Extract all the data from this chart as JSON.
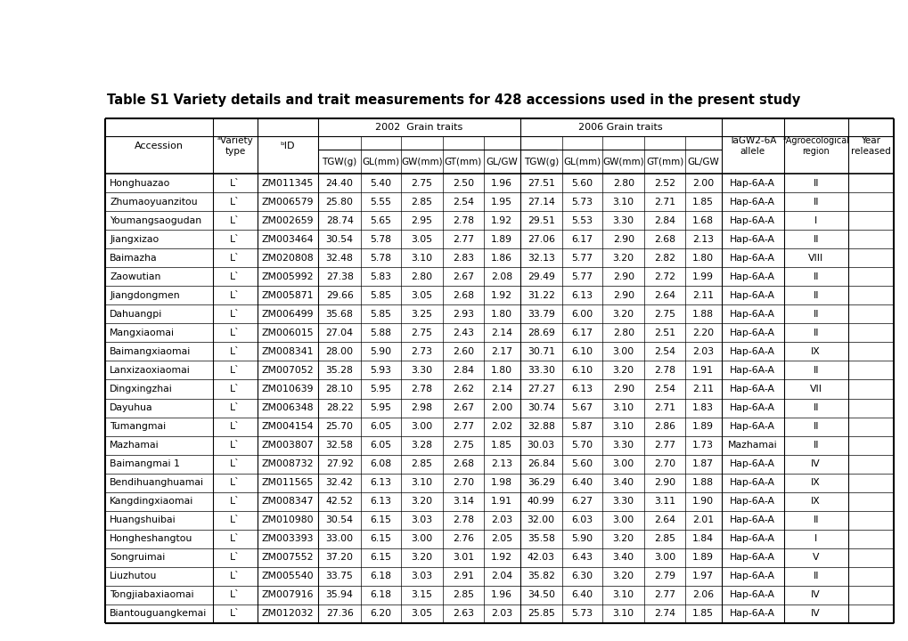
{
  "title": "Table S1 Variety details and trait measurements for 428 accessions used in the present study",
  "rows": [
    [
      "Honghuazao",
      "L`",
      "ZM011345",
      "24.40",
      "5.40",
      "2.75",
      "2.50",
      "1.96",
      "27.51",
      "5.60",
      "2.80",
      "2.52",
      "2.00",
      "Hap-6A-A",
      "II",
      ""
    ],
    [
      "Zhumaoyuanzitou",
      "L`",
      "ZM006579",
      "25.80",
      "5.55",
      "2.85",
      "2.54",
      "1.95",
      "27.14",
      "5.73",
      "3.10",
      "2.71",
      "1.85",
      "Hap-6A-A",
      "II",
      ""
    ],
    [
      "Youmangsaogudan",
      "L`",
      "ZM002659",
      "28.74",
      "5.65",
      "2.95",
      "2.78",
      "1.92",
      "29.51",
      "5.53",
      "3.30",
      "2.84",
      "1.68",
      "Hap-6A-A",
      "I",
      ""
    ],
    [
      "Jiangxizao",
      "L`",
      "ZM003464",
      "30.54",
      "5.78",
      "3.05",
      "2.77",
      "1.89",
      "27.06",
      "6.17",
      "2.90",
      "2.68",
      "2.13",
      "Hap-6A-A",
      "II",
      ""
    ],
    [
      "Baimazha",
      "L`",
      "ZM020808",
      "32.48",
      "5.78",
      "3.10",
      "2.83",
      "1.86",
      "32.13",
      "5.77",
      "3.20",
      "2.82",
      "1.80",
      "Hap-6A-A",
      "VIII",
      ""
    ],
    [
      "Zaowutian",
      "L`",
      "ZM005992",
      "27.38",
      "5.83",
      "2.80",
      "2.67",
      "2.08",
      "29.49",
      "5.77",
      "2.90",
      "2.72",
      "1.99",
      "Hap-6A-A",
      "II",
      ""
    ],
    [
      "Jiangdongmen",
      "L`",
      "ZM005871",
      "29.66",
      "5.85",
      "3.05",
      "2.68",
      "1.92",
      "31.22",
      "6.13",
      "2.90",
      "2.64",
      "2.11",
      "Hap-6A-A",
      "II",
      ""
    ],
    [
      "Dahuangpi",
      "L`",
      "ZM006499",
      "35.68",
      "5.85",
      "3.25",
      "2.93",
      "1.80",
      "33.79",
      "6.00",
      "3.20",
      "2.75",
      "1.88",
      "Hap-6A-A",
      "II",
      ""
    ],
    [
      "Mangxiaomai",
      "L`",
      "ZM006015",
      "27.04",
      "5.88",
      "2.75",
      "2.43",
      "2.14",
      "28.69",
      "6.17",
      "2.80",
      "2.51",
      "2.20",
      "Hap-6A-A",
      "II",
      ""
    ],
    [
      "Baimangxiaomai",
      "L`",
      "ZM008341",
      "28.00",
      "5.90",
      "2.73",
      "2.60",
      "2.17",
      "30.71",
      "6.10",
      "3.00",
      "2.54",
      "2.03",
      "Hap-6A-A",
      "IX",
      ""
    ],
    [
      "Lanxizaoxiaomai",
      "L`",
      "ZM007052",
      "35.28",
      "5.93",
      "3.30",
      "2.84",
      "1.80",
      "33.30",
      "6.10",
      "3.20",
      "2.78",
      "1.91",
      "Hap-6A-A",
      "II",
      ""
    ],
    [
      "Dingxingzhai",
      "L`",
      "ZM010639",
      "28.10",
      "5.95",
      "2.78",
      "2.62",
      "2.14",
      "27.27",
      "6.13",
      "2.90",
      "2.54",
      "2.11",
      "Hap-6A-A",
      "VII",
      ""
    ],
    [
      "Dayuhua",
      "L`",
      "ZM006348",
      "28.22",
      "5.95",
      "2.98",
      "2.67",
      "2.00",
      "30.74",
      "5.67",
      "3.10",
      "2.71",
      "1.83",
      "Hap-6A-A",
      "II",
      ""
    ],
    [
      "Tumangmai",
      "L`",
      "ZM004154",
      "25.70",
      "6.05",
      "3.00",
      "2.77",
      "2.02",
      "32.88",
      "5.87",
      "3.10",
      "2.86",
      "1.89",
      "Hap-6A-A",
      "II",
      ""
    ],
    [
      "Mazhamai",
      "L`",
      "ZM003807",
      "32.58",
      "6.05",
      "3.28",
      "2.75",
      "1.85",
      "30.03",
      "5.70",
      "3.30",
      "2.77",
      "1.73",
      "Mazhamai",
      "II",
      ""
    ],
    [
      "Baimangmai 1",
      "L`",
      "ZM008732",
      "27.92",
      "6.08",
      "2.85",
      "2.68",
      "2.13",
      "26.84",
      "5.60",
      "3.00",
      "2.70",
      "1.87",
      "Hap-6A-A",
      "IV",
      ""
    ],
    [
      "Bendihuanghuamai",
      "L`",
      "ZM011565",
      "32.42",
      "6.13",
      "3.10",
      "2.70",
      "1.98",
      "36.29",
      "6.40",
      "3.40",
      "2.90",
      "1.88",
      "Hap-6A-A",
      "IX",
      ""
    ],
    [
      "Kangdingxiaomai",
      "L`",
      "ZM008347",
      "42.52",
      "6.13",
      "3.20",
      "3.14",
      "1.91",
      "40.99",
      "6.27",
      "3.30",
      "3.11",
      "1.90",
      "Hap-6A-A",
      "IX",
      ""
    ],
    [
      "Huangshuibai",
      "L`",
      "ZM010980",
      "30.54",
      "6.15",
      "3.03",
      "2.78",
      "2.03",
      "32.00",
      "6.03",
      "3.00",
      "2.64",
      "2.01",
      "Hap-6A-A",
      "II",
      ""
    ],
    [
      "Hongheshangtou",
      "L`",
      "ZM003393",
      "33.00",
      "6.15",
      "3.00",
      "2.76",
      "2.05",
      "35.58",
      "5.90",
      "3.20",
      "2.85",
      "1.84",
      "Hap-6A-A",
      "I",
      ""
    ],
    [
      "Songruimai",
      "L`",
      "ZM007552",
      "37.20",
      "6.15",
      "3.20",
      "3.01",
      "1.92",
      "42.03",
      "6.43",
      "3.40",
      "3.00",
      "1.89",
      "Hap-6A-A",
      "V",
      ""
    ],
    [
      "Liuzhutou",
      "L`",
      "ZM005540",
      "33.75",
      "6.18",
      "3.03",
      "2.91",
      "2.04",
      "35.82",
      "6.30",
      "3.20",
      "2.79",
      "1.97",
      "Hap-6A-A",
      "II",
      ""
    ],
    [
      "Tongjiabaxiaomai",
      "L`",
      "ZM007916",
      "35.94",
      "6.18",
      "3.15",
      "2.85",
      "1.96",
      "34.50",
      "6.40",
      "3.10",
      "2.77",
      "2.06",
      "Hap-6A-A",
      "IV",
      ""
    ],
    [
      "Biantouguangkemai",
      "L`",
      "ZM012032",
      "27.36",
      "6.20",
      "3.05",
      "2.63",
      "2.03",
      "25.85",
      "5.73",
      "3.10",
      "2.74",
      "1.85",
      "Hap-6A-A",
      "IV",
      ""
    ]
  ],
  "bg_color": "#ffffff",
  "text_color": "#000000",
  "line_color": "#000000",
  "title_font_size": 10.5,
  "header_font_size": 8.0,
  "data_font_size": 7.8
}
